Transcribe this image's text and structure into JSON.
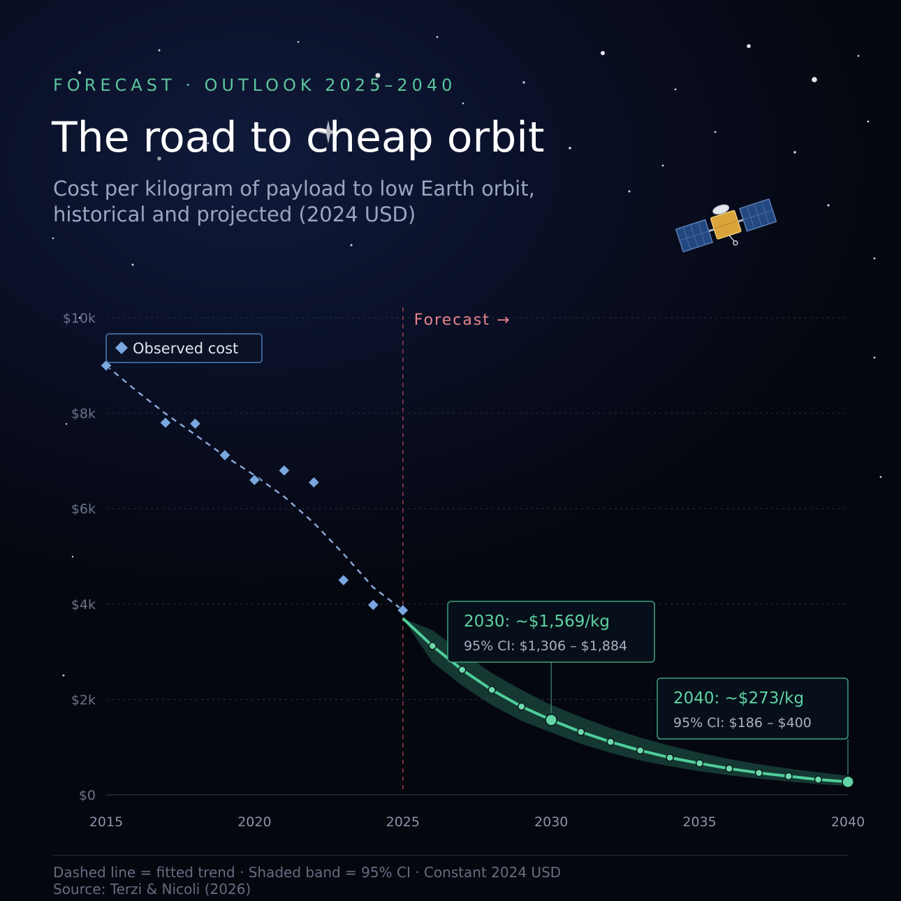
{
  "header": {
    "eyebrow": "FORECAST · OUTLOOK 2025–2040",
    "title": "The road to cheap orbit",
    "subtitle_line1": "Cost per kilogram of payload to low Earth orbit,",
    "subtitle_line2": "historical and projected (2024 USD)"
  },
  "footer": {
    "line1": "Dashed line = fitted trend · Shaded band = 95% CI · Constant 2024 USD",
    "line2": "Source: Terzi & Nicoli (2026)"
  },
  "colors": {
    "observed": "#7aa7e0",
    "forecast": "#4fce9a",
    "divider": "#c0505a",
    "forecast_label": "#e8848c",
    "band": "#1b4a40"
  },
  "decor": {
    "satellite_icon": "satellite-icon"
  },
  "chart_data": {
    "type": "line",
    "x_range": [
      2015,
      2040
    ],
    "ylim": [
      0,
      10000
    ],
    "grid": true,
    "legend_position": "top-left",
    "x_ticks": [
      "2015",
      "2020",
      "2025",
      "2030",
      "2035",
      "2040"
    ],
    "x_tick_values": [
      2015,
      2020,
      2025,
      2030,
      2035,
      2040
    ],
    "y_ticks": [
      "$0",
      "$2k",
      "$4k",
      "$6k",
      "$8k",
      "$10k"
    ],
    "y_tick_values": [
      0,
      2000,
      4000,
      6000,
      8000,
      10000
    ],
    "forecast_start": 2025,
    "forecast_label": "Forecast →",
    "series": [
      {
        "name": "Observed cost",
        "kind": "observed",
        "x": [
          2015,
          2017,
          2018,
          2019,
          2020,
          2021,
          2022,
          2023,
          2024,
          2025
        ],
        "y": [
          9000,
          7800,
          7780,
          7120,
          6600,
          6800,
          6550,
          4500,
          3980,
          3870
        ]
      },
      {
        "kind": "fitted_trend",
        "x": [
          2015,
          2016,
          2017,
          2018,
          2019,
          2020,
          2021,
          2022,
          2023,
          2024,
          2025
        ],
        "y": [
          9000,
          8480,
          7990,
          7550,
          7100,
          6700,
          6250,
          5700,
          5050,
          4350,
          3870
        ]
      },
      {
        "kind": "forecast",
        "x": [
          2025,
          2026,
          2027,
          2028,
          2029,
          2030,
          2031,
          2032,
          2033,
          2034,
          2035,
          2036,
          2037,
          2038,
          2039,
          2040
        ],
        "y": [
          3700,
          3120,
          2620,
          2200,
          1850,
          1569,
          1320,
          1110,
          930,
          780,
          660,
          550,
          460,
          390,
          320,
          273
        ],
        "ci_low": [
          3700,
          2780,
          2290,
          1880,
          1550,
          1306,
          1070,
          880,
          720,
          600,
          495,
          410,
          340,
          280,
          225,
          186
        ],
        "ci_high": [
          3700,
          3450,
          2980,
          2550,
          2200,
          1884,
          1630,
          1400,
          1200,
          1030,
          880,
          750,
          640,
          550,
          470,
          400
        ]
      }
    ],
    "annotations": [
      {
        "x": 2030,
        "y": 1569,
        "title": "2030: ~$1,569/kg",
        "detail": "95% CI: $1,306 – $1,884"
      },
      {
        "x": 2040,
        "y": 273,
        "title": "2040: ~$273/kg",
        "detail": "95% CI: $186 – $400"
      }
    ]
  }
}
